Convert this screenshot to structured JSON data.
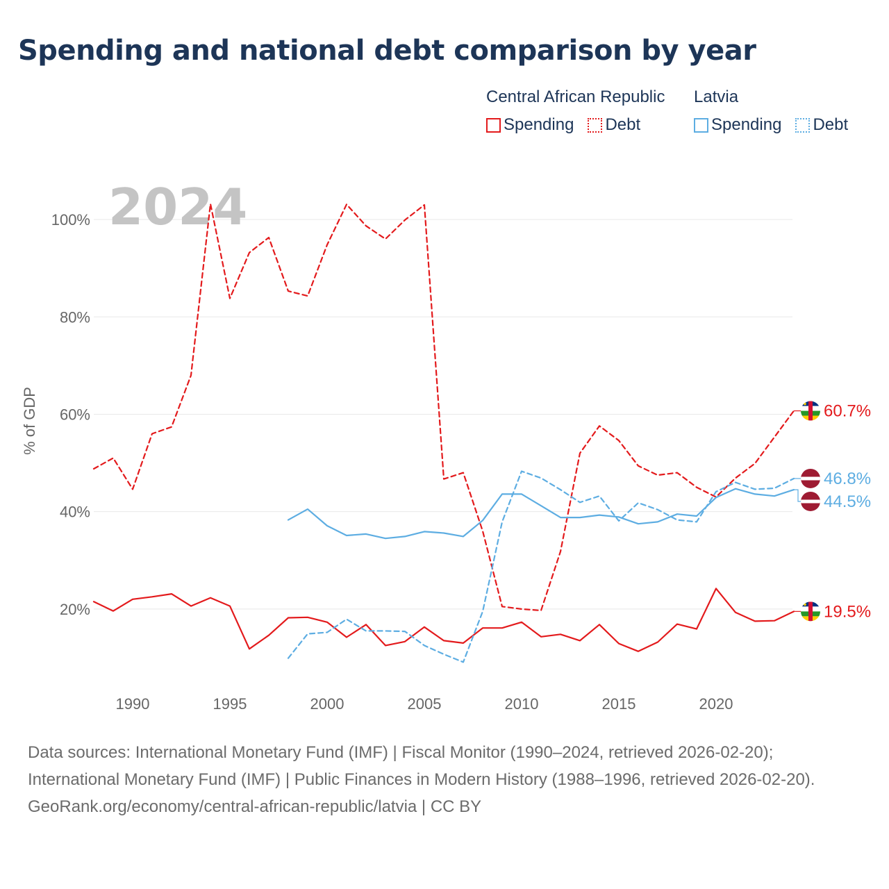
{
  "title": "Spending and national debt comparison by year",
  "legend": {
    "groups": [
      {
        "name": "Central African Republic",
        "color": "#e31a1c",
        "items": [
          "Spending",
          "Debt"
        ]
      },
      {
        "name": "Latvia",
        "color": "#5dade2",
        "items": [
          "Spending",
          "Debt"
        ]
      }
    ]
  },
  "footer": {
    "sources": "Data sources: International Monetary Fund (IMF) | Fiscal Monitor (1990–2024, retrieved 2026-02-20); International Monetary Fund (IMF) | Public Finances in Modern History (1988–1996, retrieved 2026-02-20).",
    "credit": "GeoRank.org/economy/central-african-republic/latvia | CC BY"
  },
  "chart_data": {
    "type": "line",
    "year_watermark": "2024",
    "ylabel": "% of GDP",
    "xlim": [
      1988,
      2024
    ],
    "ylim": [
      5,
      106
    ],
    "x_ticks": [
      1990,
      1995,
      2000,
      2005,
      2010,
      2015,
      2020
    ],
    "y_ticks": [
      {
        "value": 20,
        "label": "20%"
      },
      {
        "value": 40,
        "label": "40%"
      },
      {
        "value": 60,
        "label": "60%"
      },
      {
        "value": 80,
        "label": "80%"
      },
      {
        "value": 100,
        "label": "100%"
      }
    ],
    "series": [
      {
        "name": "Central African Republic Spending",
        "country": "Central African Republic",
        "metric": "Spending",
        "color": "#e31a1c",
        "dash": "solid",
        "end_label": "19.5%",
        "x": [
          1988,
          1989,
          1990,
          1991,
          1992,
          1993,
          1994,
          1995,
          1996,
          1997,
          1998,
          1999,
          2000,
          2001,
          2002,
          2003,
          2004,
          2005,
          2006,
          2007,
          2008,
          2009,
          2010,
          2011,
          2012,
          2013,
          2014,
          2015,
          2016,
          2017,
          2018,
          2019,
          2020,
          2021,
          2022,
          2023,
          2024
        ],
        "y": [
          21.5,
          19.6,
          22.0,
          22.5,
          23.1,
          20.6,
          22.3,
          20.6,
          11.8,
          14.6,
          18.2,
          18.3,
          17.3,
          14.2,
          16.8,
          12.5,
          13.3,
          16.3,
          13.5,
          13.0,
          16.1,
          16.1,
          17.3,
          14.3,
          14.8,
          13.5,
          16.8,
          12.9,
          11.3,
          13.2,
          16.9,
          15.9,
          24.2,
          19.3,
          17.5,
          17.6,
          19.5
        ]
      },
      {
        "name": "Central African Republic Debt",
        "country": "Central African Republic",
        "metric": "Debt",
        "color": "#e31a1c",
        "dash": "dashed",
        "end_label": "60.7%",
        "x": [
          1988,
          1989,
          1990,
          1991,
          1992,
          1993,
          1994,
          1995,
          1996,
          1997,
          1998,
          1999,
          2000,
          2001,
          2002,
          2003,
          2004,
          2005,
          2006,
          2007,
          2008,
          2009,
          2010,
          2011,
          2012,
          2013,
          2014,
          2015,
          2016,
          2017,
          2018,
          2019,
          2020,
          2021,
          2022,
          2023,
          2024
        ],
        "y": [
          48.8,
          51.0,
          44.6,
          56.0,
          57.4,
          68.0,
          103.2,
          83.8,
          93.2,
          96.3,
          85.3,
          84.3,
          94.8,
          103.1,
          98.7,
          96.0,
          99.9,
          103.0,
          46.7,
          48.0,
          36.0,
          20.5,
          20.0,
          19.7,
          31.8,
          52.0,
          57.6,
          54.6,
          49.4,
          47.5,
          48.0,
          45.0,
          43.0,
          46.9,
          49.9,
          55.3,
          60.7
        ]
      },
      {
        "name": "Latvia Spending",
        "country": "Latvia",
        "metric": "Spending",
        "color": "#5dade2",
        "dash": "solid",
        "end_label": "44.5%",
        "x": [
          1998,
          1999,
          2000,
          2001,
          2002,
          2003,
          2004,
          2005,
          2006,
          2007,
          2008,
          2009,
          2010,
          2011,
          2012,
          2013,
          2014,
          2015,
          2016,
          2017,
          2018,
          2019,
          2020,
          2021,
          2022,
          2023,
          2024
        ],
        "y": [
          38.3,
          40.5,
          37.1,
          35.1,
          35.4,
          34.5,
          34.9,
          35.9,
          35.6,
          34.9,
          38.2,
          43.6,
          43.6,
          41.2,
          38.8,
          38.8,
          39.3,
          38.9,
          37.5,
          37.9,
          39.5,
          39.1,
          42.9,
          44.7,
          43.6,
          43.2,
          44.5
        ]
      },
      {
        "name": "Latvia Debt",
        "country": "Latvia",
        "metric": "Debt",
        "color": "#5dade2",
        "dash": "dashed",
        "end_label": "46.8%",
        "x": [
          1998,
          1999,
          2000,
          2001,
          2002,
          2003,
          2004,
          2005,
          2006,
          2007,
          2008,
          2009,
          2010,
          2011,
          2012,
          2013,
          2014,
          2015,
          2016,
          2017,
          2018,
          2019,
          2020,
          2021,
          2022,
          2023,
          2024
        ],
        "y": [
          9.9,
          14.9,
          15.2,
          17.9,
          15.5,
          15.5,
          15.4,
          12.5,
          10.7,
          9.1,
          19.5,
          37.9,
          48.3,
          46.9,
          44.5,
          41.9,
          43.2,
          38.1,
          41.8,
          40.4,
          38.3,
          37.9,
          44.1,
          46.0,
          44.6,
          44.8,
          46.8
        ]
      }
    ]
  }
}
